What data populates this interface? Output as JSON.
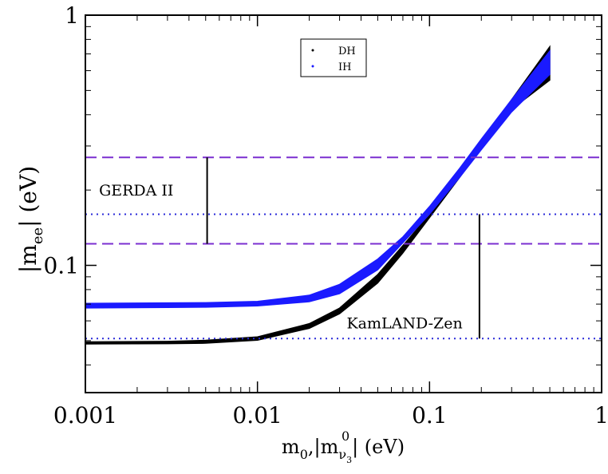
{
  "chart_data": {
    "type": "scatter",
    "title": "",
    "xscale": "log",
    "yscale": "log",
    "xlim": [
      0.001,
      1
    ],
    "ylim": [
      0.031,
      1
    ],
    "xticks": [
      {
        "value": 0.001,
        "label": "0.001"
      },
      {
        "value": 0.01,
        "label": "0.01"
      },
      {
        "value": 0.1,
        "label": "0.1"
      },
      {
        "value": 1,
        "label": "1"
      }
    ],
    "yticks": [
      {
        "value": 0.1,
        "label": "0.1"
      },
      {
        "value": 1,
        "label": "1"
      }
    ],
    "xlabel": {
      "m": "m",
      "sub0": "0",
      "mid": ",|m",
      "sup": "0",
      "nu": "ν",
      "sub3": "3",
      "end": "| (eV)"
    },
    "ylabel": {
      "pre": "|m",
      "sub": "ee",
      "post": "| (eV)"
    },
    "legend": {
      "position": "top-center",
      "entries": [
        "DH",
        "IH"
      ]
    },
    "series": [
      {
        "name": "DH",
        "color": "#000000",
        "x": [
          0.001,
          0.003,
          0.005,
          0.01,
          0.02,
          0.03,
          0.05,
          0.07,
          0.1,
          0.15,
          0.2,
          0.3,
          0.5
        ],
        "lower": [
          0.0485,
          0.0486,
          0.0488,
          0.0502,
          0.056,
          0.064,
          0.085,
          0.112,
          0.155,
          0.225,
          0.295,
          0.42,
          0.55
        ],
        "upper": [
          0.0495,
          0.0497,
          0.0502,
          0.0518,
          0.0585,
          0.0675,
          0.092,
          0.12,
          0.16,
          0.235,
          0.31,
          0.46,
          0.75
        ]
      },
      {
        "name": "IH",
        "color": "#1a1aff",
        "x": [
          0.001,
          0.003,
          0.005,
          0.01,
          0.02,
          0.03,
          0.05,
          0.07,
          0.1,
          0.15,
          0.2,
          0.3,
          0.5
        ],
        "lower": [
          0.0675,
          0.0678,
          0.068,
          0.0688,
          0.0715,
          0.077,
          0.096,
          0.123,
          0.16,
          0.225,
          0.29,
          0.41,
          0.58
        ],
        "upper": [
          0.0705,
          0.0708,
          0.071,
          0.0718,
          0.076,
          0.084,
          0.106,
          0.13,
          0.172,
          0.245,
          0.32,
          0.46,
          0.72
        ]
      }
    ],
    "reference_lines": [
      {
        "name": "gerda-upper",
        "y": 0.27,
        "style": "dashed",
        "color": "#7b2fd0"
      },
      {
        "name": "gerda-lower",
        "y": 0.122,
        "style": "dashed",
        "color": "#7b2fd0"
      },
      {
        "name": "kamland-upper",
        "y": 0.16,
        "style": "dotted",
        "color": "#2a2ad8"
      },
      {
        "name": "kamland-lower",
        "y": 0.051,
        "style": "dotted",
        "color": "#2a2ad8"
      }
    ],
    "annotations": [
      {
        "text": "GERDA II",
        "x": 0.0012,
        "y": 0.19,
        "bar_x": 0.0051,
        "bar_y": [
          0.122,
          0.27
        ]
      },
      {
        "text": "KamLAND-Zen",
        "x": 0.033,
        "y": 0.056,
        "bar_x": 0.195,
        "bar_y": [
          0.051,
          0.16
        ]
      }
    ]
  }
}
